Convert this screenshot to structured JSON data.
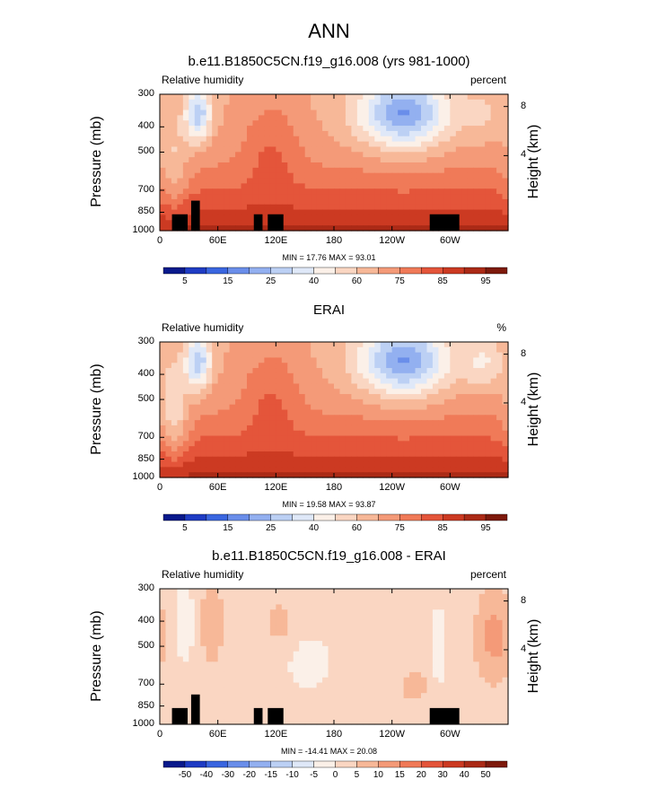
{
  "main_title": "ANN",
  "chart_data": [
    {
      "type": "heatmap",
      "title": "b.e11.B1850C5CN.f19_g16.008 (yrs 981-1000)",
      "left_subtitle": "Relative humidity",
      "right_subtitle": "percent",
      "ylabel": "Pressure (mb)",
      "right_axis_label": "Height (km)",
      "x_ticks": [
        "0",
        "60E",
        "120E",
        "180",
        "120W",
        "60W"
      ],
      "y_ticks": [
        "300",
        "400",
        "500",
        "700",
        "850",
        "1000"
      ],
      "height_ticks": [
        "8",
        "4"
      ],
      "min_max_text": "MIN = 17.76 MAX = 93.01",
      "colorbar_labels": [
        "5",
        "15",
        "25",
        "40",
        "60",
        "75",
        "85",
        "95"
      ],
      "colorbar_colors": [
        "#0a1a8c",
        "#1f3cc4",
        "#3a66e0",
        "#6a8eea",
        "#93b0f0",
        "#bcd0f4",
        "#dfe8f8",
        "#fbf0e8",
        "#fad6c2",
        "#f7b898",
        "#f49a78",
        "#f07a58",
        "#e4553a",
        "#cc3a22",
        "#ab2a16",
        "#7e1a0c"
      ],
      "value_range": [
        0,
        100
      ],
      "grid": false
    },
    {
      "type": "heatmap",
      "title": "ERAI",
      "left_subtitle": "Relative humidity",
      "right_subtitle": "%",
      "ylabel": "Pressure (mb)",
      "right_axis_label": "Height (km)",
      "x_ticks": [
        "0",
        "60E",
        "120E",
        "180",
        "120W",
        "60W"
      ],
      "y_ticks": [
        "300",
        "400",
        "500",
        "700",
        "850",
        "1000"
      ],
      "height_ticks": [
        "8",
        "4"
      ],
      "min_max_text": "MIN = 19.58 MAX = 93.87",
      "colorbar_labels": [
        "5",
        "15",
        "25",
        "40",
        "60",
        "75",
        "85",
        "95"
      ],
      "colorbar_colors": [
        "#0a1a8c",
        "#1f3cc4",
        "#3a66e0",
        "#6a8eea",
        "#93b0f0",
        "#bcd0f4",
        "#dfe8f8",
        "#fbf0e8",
        "#fad6c2",
        "#f7b898",
        "#f49a78",
        "#f07a58",
        "#e4553a",
        "#cc3a22",
        "#ab2a16",
        "#7e1a0c"
      ],
      "value_range": [
        0,
        100
      ],
      "grid": false
    },
    {
      "type": "heatmap",
      "title": "b.e11.B1850C5CN.f19_g16.008 - ERAI",
      "left_subtitle": "Relative humidity",
      "right_subtitle": "percent",
      "ylabel": "Pressure (mb)",
      "right_axis_label": "Height (km)",
      "x_ticks": [
        "0",
        "60E",
        "120E",
        "180",
        "120W",
        "60W"
      ],
      "y_ticks": [
        "300",
        "400",
        "500",
        "700",
        "850",
        "1000"
      ],
      "height_ticks": [
        "8",
        "4"
      ],
      "min_max_text": "MIN = -14.41 MAX = 20.08",
      "colorbar_labels": [
        "-50",
        "-40",
        "-30",
        "-20",
        "-15",
        "-10",
        "-5",
        "0",
        "5",
        "10",
        "15",
        "20",
        "30",
        "40",
        "50"
      ],
      "colorbar_colors": [
        "#0a1a8c",
        "#1f3cc4",
        "#3a66e0",
        "#6a8eea",
        "#93b0f0",
        "#bcd0f4",
        "#dfe8f8",
        "#fbf0e8",
        "#fad6c2",
        "#f7b898",
        "#f49a78",
        "#f07a58",
        "#e4553a",
        "#cc3a22",
        "#ab2a16",
        "#7e1a0c"
      ],
      "value_range": [
        -60,
        60
      ],
      "grid": false
    }
  ]
}
